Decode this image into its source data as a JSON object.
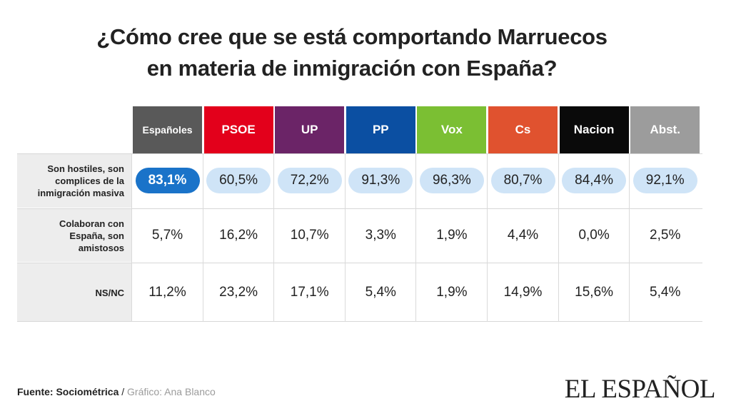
{
  "chart_data": {
    "type": "table",
    "title_lines": [
      "¿Cómo cree que se está comportando Marruecos",
      "en materia de inmigración con España?"
    ],
    "columns": [
      {
        "label": "Españoles",
        "color": "#595959"
      },
      {
        "label": "PSOE",
        "color": "#e3001b"
      },
      {
        "label": "UP",
        "color": "#6b2467"
      },
      {
        "label": "PP",
        "color": "#0b4fa2"
      },
      {
        "label": "Vox",
        "color": "#7bbf33"
      },
      {
        "label": "Cs",
        "color": "#e0522f"
      },
      {
        "label": "Nacion",
        "color": "#0a0a0a"
      },
      {
        "label": "Abst.",
        "color": "#9c9c9c"
      }
    ],
    "rows": [
      {
        "label": [
          "Son hostiles, son",
          "complices de la",
          "inmigración masiva"
        ],
        "values": [
          "83,1%",
          "60,5%",
          "72,2%",
          "91,3%",
          "96,3%",
          "80,7%",
          "84,4%",
          "92,1%"
        ],
        "highlight": true
      },
      {
        "label": [
          "Colaboran con",
          "España, son",
          "amistosos"
        ],
        "values": [
          "5,7%",
          "16,2%",
          "10,7%",
          "3,3%",
          "1,9%",
          "4,4%",
          "0,0%",
          "2,5%"
        ],
        "highlight": false
      },
      {
        "label": [
          "NS/NC"
        ],
        "values": [
          "11,2%",
          "23,2%",
          "17,1%",
          "5,4%",
          "1,9%",
          "14,9%",
          "15,6%",
          "5,4%"
        ],
        "highlight": false
      }
    ],
    "pill_colors": {
      "main": "#1a73c9",
      "other": "#cfe4f7"
    }
  },
  "footer": {
    "source_label": "Fuente: Sociométrica",
    "separator": " / ",
    "credit": "Gráfico: Ana Blanco"
  },
  "brand": "EL ESPAÑOL"
}
